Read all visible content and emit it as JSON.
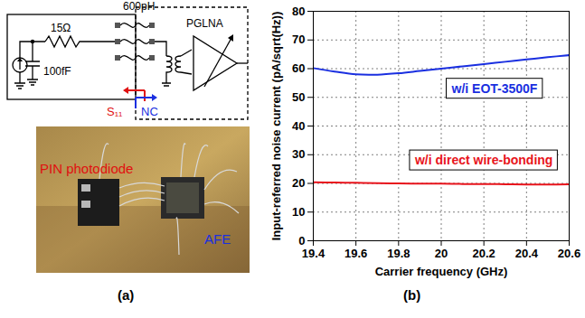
{
  "chart_data": {
    "type": "line",
    "xlabel": "Carrier frequency (GHz)",
    "ylabel": "Input-referred noise current (pA/sqrt(Hz))",
    "x": [
      19.4,
      19.5,
      19.6,
      19.7,
      19.8,
      19.9,
      20.0,
      20.1,
      20.2,
      20.3,
      20.4,
      20.5,
      20.6
    ],
    "series": [
      {
        "name": "w/i EOT-3500F",
        "color": "#1a2fe0",
        "values": [
          60.2,
          59.0,
          58.0,
          57.9,
          58.4,
          59.2,
          60.0,
          60.8,
          61.6,
          62.4,
          63.2,
          64.0,
          64.7
        ]
      },
      {
        "name": "w/i direct wire-bonding",
        "color": "#e8141c",
        "values": [
          20.4,
          20.3,
          20.2,
          20.1,
          20.0,
          19.9,
          19.9,
          19.8,
          19.8,
          19.7,
          19.6,
          19.6,
          19.7
        ]
      }
    ],
    "xlim": [
      19.4,
      20.6
    ],
    "xticks": [
      19.4,
      19.6,
      19.8,
      20,
      20.2,
      20.4,
      20.6
    ],
    "ylim": [
      0,
      80
    ],
    "yticks": [
      0,
      10,
      20,
      30,
      40,
      50,
      60,
      70,
      80
    ],
    "grid": true,
    "panel_label": "(b)"
  },
  "diagram": {
    "panel_label": "(a)",
    "circuit": {
      "inductor": "600pH",
      "resistor": "15Ω",
      "capacitor": "100fF",
      "amplifier": "PGLNA",
      "port_s11": "S₁₁",
      "port_nc": "NC"
    },
    "photo": {
      "photodiode": "PIN photodiode",
      "chip": "AFE"
    }
  }
}
